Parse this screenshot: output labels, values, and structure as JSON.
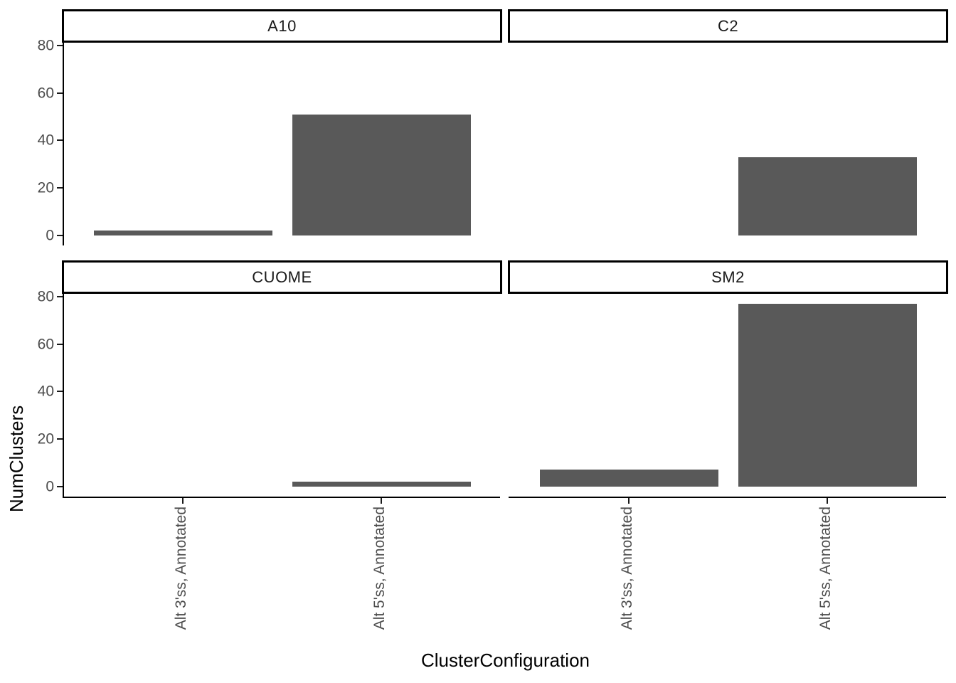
{
  "chart_data": {
    "type": "bar",
    "title": "",
    "xlabel": "ClusterConfiguration",
    "ylabel": "NumClusters",
    "categories": [
      "Alt 3'ss, Annotated",
      "Alt 5'ss, Annotated"
    ],
    "facets": [
      {
        "name": "A10",
        "values": [
          2,
          51
        ]
      },
      {
        "name": "C2",
        "values": [
          0,
          33
        ]
      },
      {
        "name": "CUOME",
        "values": [
          0,
          2
        ]
      },
      {
        "name": "SM2",
        "values": [
          7,
          77
        ]
      }
    ],
    "y_ticks": [
      0,
      20,
      40,
      60,
      80
    ],
    "ylim": [
      -4.3,
      81.2
    ],
    "facet_layout": "2x2",
    "x_label_rotation": 90,
    "grid": false,
    "legend": false,
    "bar_color": "#595959",
    "axis_line_color": "#000000",
    "tick_color": "#1a1a1a",
    "tick_label_color": "#4d4d4d",
    "strip_border_color": "#000000",
    "strip_fill": "#ffffff"
  }
}
